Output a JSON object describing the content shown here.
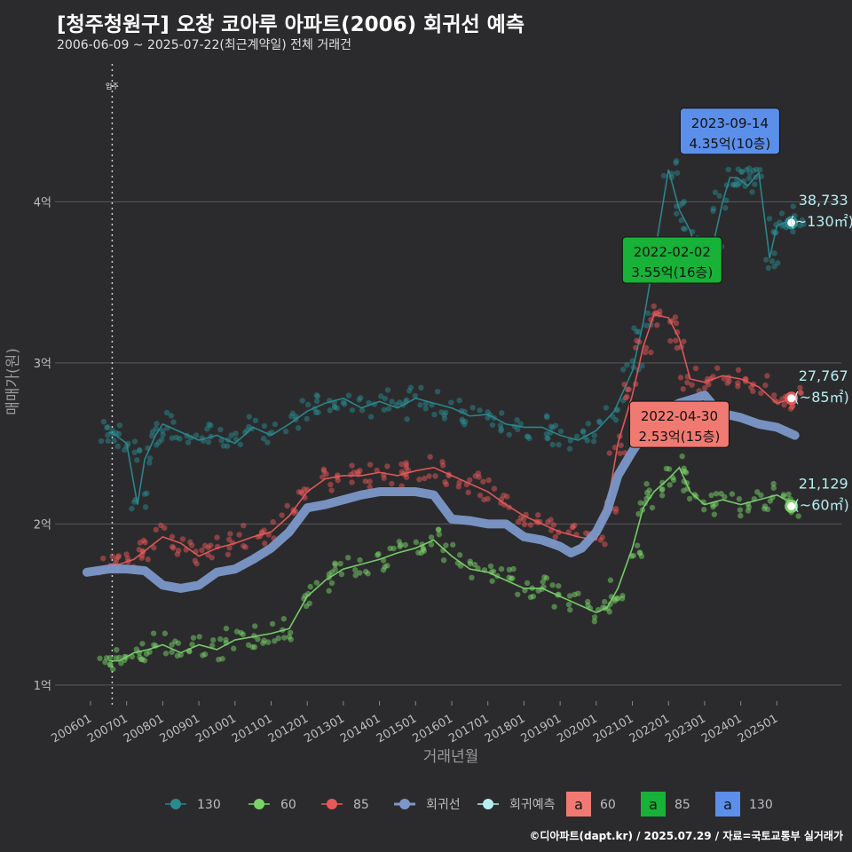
{
  "title": "[청주청원구] 오창 코아루 아파트(2006) 회귀선 예측",
  "subtitle": "2006-06-09 ~ 2025-07-22(최근계약일) 전체 거래건",
  "credit": "©디아파트(dapt.kr) / 2025.07.29 / 자료=국토교통부 실거래가",
  "chart_data": {
    "type": "scatter",
    "xlabel": "거래년월",
    "ylabel": "매매가(원)",
    "x_range": [
      2006.0,
      2025.7
    ],
    "y_range": [
      0.9,
      4.9
    ],
    "x_ticks": [
      "200601",
      "200701",
      "200801",
      "200901",
      "201001",
      "201101",
      "201201",
      "201301",
      "201401",
      "201501",
      "201601",
      "201701",
      "201801",
      "201901",
      "202001",
      "202101",
      "202201",
      "202301",
      "202401",
      "202501"
    ],
    "y_ticks": [
      {
        "value": 1,
        "label": "1억"
      },
      {
        "value": 2,
        "label": "2억"
      },
      {
        "value": 3,
        "label": "3억"
      },
      {
        "value": 4,
        "label": "4억"
      }
    ],
    "grid": true,
    "vline": {
      "x": 2006.6,
      "label": "입주"
    },
    "colors": {
      "130": "#2a8a8f",
      "60": "#7ad36a",
      "85": "#e8585a",
      "regression": "#7b98c9",
      "forecast": "#b6eef0"
    },
    "series": [
      {
        "name": "130",
        "color": "#2a8a8f",
        "x": [
          2006.5,
          2006.7,
          2007.0,
          2007.3,
          2007.5,
          2007.8,
          2008.0,
          2008.5,
          2009.0,
          2009.5,
          2010.0,
          2010.5,
          2011.0,
          2011.5,
          2012.0,
          2012.5,
          2013.0,
          2013.5,
          2014.0,
          2014.5,
          2015.0,
          2015.5,
          2016.0,
          2016.5,
          2017.0,
          2017.5,
          2018.0,
          2018.5,
          2019.0,
          2019.5,
          2020.0,
          2020.5,
          2021.0,
          2021.3,
          2021.6,
          2022.0,
          2022.3,
          2022.6,
          2022.9,
          2023.2,
          2023.5,
          2023.7,
          2023.9,
          2024.2,
          2024.5,
          2024.8,
          2025.0,
          2025.3,
          2025.5
        ],
        "y": [
          2.57,
          2.55,
          2.5,
          2.12,
          2.4,
          2.55,
          2.62,
          2.57,
          2.52,
          2.55,
          2.5,
          2.6,
          2.55,
          2.62,
          2.7,
          2.75,
          2.78,
          2.72,
          2.76,
          2.72,
          2.78,
          2.75,
          2.72,
          2.67,
          2.68,
          2.62,
          2.6,
          2.6,
          2.55,
          2.52,
          2.58,
          2.7,
          2.95,
          3.25,
          3.65,
          4.2,
          3.95,
          3.82,
          3.6,
          3.7,
          4.0,
          4.15,
          4.15,
          4.1,
          4.18,
          3.65,
          3.85,
          3.88,
          3.9
        ]
      },
      {
        "name": "60",
        "color": "#7ad36a",
        "x": [
          2006.5,
          2006.8,
          2007.2,
          2007.6,
          2008.0,
          2008.5,
          2009.0,
          2009.5,
          2010.0,
          2010.5,
          2011.0,
          2011.5,
          2012.0,
          2012.5,
          2013.0,
          2013.5,
          2014.0,
          2014.5,
          2015.0,
          2015.5,
          2016.0,
          2016.5,
          2017.0,
          2017.5,
          2018.0,
          2018.5,
          2019.0,
          2019.5,
          2020.0,
          2020.3,
          2020.6,
          2021.0,
          2021.3,
          2021.6,
          2022.0,
          2022.3,
          2022.6,
          2023.0,
          2023.5,
          2024.0,
          2024.5,
          2025.0,
          2025.5
        ],
        "y": [
          1.15,
          1.15,
          1.2,
          1.22,
          1.25,
          1.2,
          1.25,
          1.22,
          1.28,
          1.3,
          1.32,
          1.35,
          1.55,
          1.65,
          1.72,
          1.75,
          1.78,
          1.82,
          1.85,
          1.9,
          1.8,
          1.72,
          1.7,
          1.65,
          1.6,
          1.6,
          1.55,
          1.5,
          1.45,
          1.48,
          1.6,
          1.85,
          2.1,
          2.2,
          2.28,
          2.35,
          2.2,
          2.12,
          2.15,
          2.12,
          2.15,
          2.18,
          2.12
        ]
      },
      {
        "name": "85",
        "color": "#e8585a",
        "x": [
          2006.5,
          2006.8,
          2007.2,
          2007.6,
          2008.0,
          2008.5,
          2009.0,
          2009.5,
          2010.0,
          2010.5,
          2011.0,
          2011.5,
          2012.0,
          2012.5,
          2013.0,
          2013.5,
          2014.0,
          2014.5,
          2015.0,
          2015.5,
          2016.0,
          2016.5,
          2017.0,
          2017.5,
          2018.0,
          2018.5,
          2019.0,
          2019.5,
          2020.0,
          2020.3,
          2020.6,
          2021.0,
          2021.3,
          2021.6,
          2022.0,
          2022.3,
          2022.6,
          2023.0,
          2023.5,
          2024.0,
          2024.5,
          2025.0,
          2025.5
        ],
        "y": [
          1.75,
          1.75,
          1.78,
          1.85,
          1.92,
          1.88,
          1.8,
          1.85,
          1.88,
          1.92,
          1.95,
          2.05,
          2.2,
          2.28,
          2.3,
          2.3,
          2.32,
          2.3,
          2.33,
          2.35,
          2.3,
          2.25,
          2.2,
          2.12,
          2.05,
          2.0,
          1.95,
          1.92,
          1.9,
          2.1,
          2.5,
          2.8,
          3.1,
          3.3,
          3.28,
          3.15,
          2.9,
          2.88,
          2.92,
          2.9,
          2.85,
          2.75,
          2.78
        ]
      },
      {
        "name": "회귀선",
        "color": "#7b98c9",
        "x": [
          2005.9,
          2006.5,
          2007.0,
          2007.5,
          2008.0,
          2008.5,
          2009.0,
          2009.5,
          2010.0,
          2010.5,
          2011.0,
          2011.5,
          2012.0,
          2012.5,
          2013.0,
          2013.5,
          2014.0,
          2014.5,
          2015.0,
          2015.5,
          2016.0,
          2016.5,
          2017.0,
          2017.5,
          2018.0,
          2018.5,
          2019.0,
          2019.3,
          2019.6,
          2020.0,
          2020.3,
          2020.6,
          2021.0,
          2021.3,
          2021.6,
          2022.0,
          2022.3,
          2022.6,
          2023.0,
          2023.3,
          2023.6,
          2024.0,
          2024.5,
          2025.0,
          2025.5
        ],
        "y": [
          1.7,
          1.72,
          1.72,
          1.71,
          1.62,
          1.6,
          1.62,
          1.7,
          1.72,
          1.78,
          1.85,
          1.95,
          2.1,
          2.12,
          2.15,
          2.18,
          2.2,
          2.2,
          2.2,
          2.18,
          2.03,
          2.02,
          2.0,
          2.0,
          1.92,
          1.9,
          1.86,
          1.82,
          1.85,
          1.95,
          2.08,
          2.3,
          2.45,
          2.55,
          2.65,
          2.72,
          2.75,
          2.77,
          2.8,
          2.72,
          2.68,
          2.66,
          2.62,
          2.6,
          2.55
        ]
      }
    ],
    "endpoints": [
      {
        "series": "130",
        "x": 2025.5,
        "y": 3.87,
        "value": "38,733",
        "note": "(~130㎡)"
      },
      {
        "series": "85",
        "x": 2025.5,
        "y": 2.78,
        "value": "27,767",
        "note": "(~85㎡)"
      },
      {
        "series": "60",
        "x": 2025.5,
        "y": 2.11,
        "value": "21,129",
        "note": "(~60㎡)"
      }
    ],
    "annotations": [
      {
        "date": "2023-09-14",
        "price": "4.35억(10층)",
        "x": 2023.7,
        "y": 4.35,
        "color": "#5b8fea"
      },
      {
        "date": "2022-02-02",
        "price": "3.55억(16층)",
        "x": 2022.1,
        "y": 3.55,
        "color": "#17b237"
      },
      {
        "date": "2022-04-30",
        "price": "2.53억(15층)",
        "x": 2022.3,
        "y": 2.53,
        "color": "#f07a72"
      }
    ],
    "legend": {
      "placement": "bottom",
      "items": [
        {
          "label": "130",
          "color": "#2a8a8f"
        },
        {
          "label": "60",
          "color": "#7ad36a"
        },
        {
          "label": "85",
          "color": "#e8585a"
        },
        {
          "label": "회귀선",
          "color": "#7b98c9"
        },
        {
          "label": "회귀예측",
          "color": "#b6eef0"
        }
      ],
      "box_items": [
        {
          "glyph": "a",
          "label": "60",
          "color": "#f07a72"
        },
        {
          "glyph": "a",
          "label": "85",
          "color": "#17b237"
        },
        {
          "glyph": "a",
          "label": "130",
          "color": "#5b8fea"
        }
      ]
    }
  }
}
